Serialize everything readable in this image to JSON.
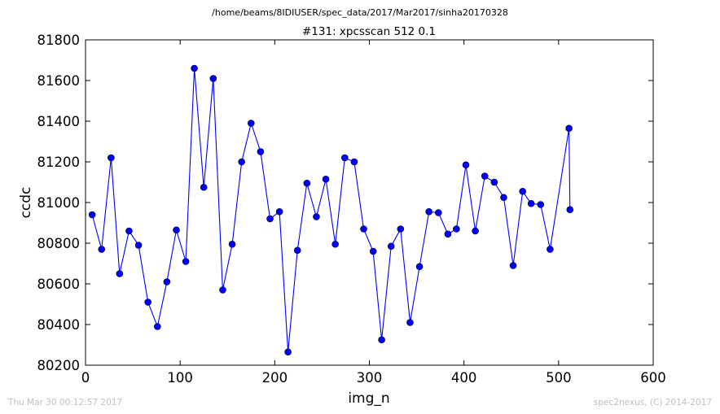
{
  "chart_data": {
    "type": "line",
    "suptitle": "/home/beams/8IDIUSER/spec_data/2017/Mar2017/sinha20170328",
    "title": "#131: xpcsscan 512 0.1",
    "xlabel": "img_n",
    "ylabel": "ccdc",
    "xlim": [
      0,
      600
    ],
    "ylim": [
      80200,
      81800
    ],
    "xticks": [
      "0",
      "100",
      "200",
      "300",
      "400",
      "500",
      "600"
    ],
    "yticks": [
      "80200",
      "80400",
      "80600",
      "80800",
      "81000",
      "81200",
      "81400",
      "81600",
      "81800"
    ],
    "grid": false,
    "marker": "circle",
    "line_color": "#0000ff",
    "marker_color": "#0000ff",
    "series": [
      {
        "x": [
          7,
          17,
          27,
          36,
          46,
          56,
          66,
          76,
          86,
          96,
          106,
          115,
          125,
          135,
          145,
          155,
          165,
          175,
          185,
          195,
          205,
          214,
          224,
          234,
          244,
          254,
          264,
          274,
          284,
          294,
          304,
          313,
          323,
          333,
          343,
          353,
          363,
          373,
          383,
          392,
          402,
          412,
          422,
          432,
          442,
          452,
          462,
          471,
          481,
          491,
          511,
          512
        ],
        "y": [
          80940,
          80770,
          81220,
          80650,
          80860,
          80790,
          80510,
          80390,
          80610,
          80865,
          80710,
          81660,
          81075,
          81610,
          80570,
          80795,
          81200,
          81390,
          81250,
          80920,
          80955,
          80265,
          80765,
          81095,
          80930,
          81115,
          80795,
          81220,
          81200,
          80870,
          80760,
          80325,
          80785,
          80870,
          80410,
          80685,
          80955,
          80950,
          80845,
          80870,
          81185,
          80860,
          81130,
          81100,
          81025,
          80690,
          81055,
          80995,
          80990,
          80770,
          81365,
          80965
        ]
      }
    ]
  },
  "footer": {
    "left": "Thu Mar 30 00:12:57 2017",
    "right": "spec2nexus, (C) 2014-2017"
  }
}
